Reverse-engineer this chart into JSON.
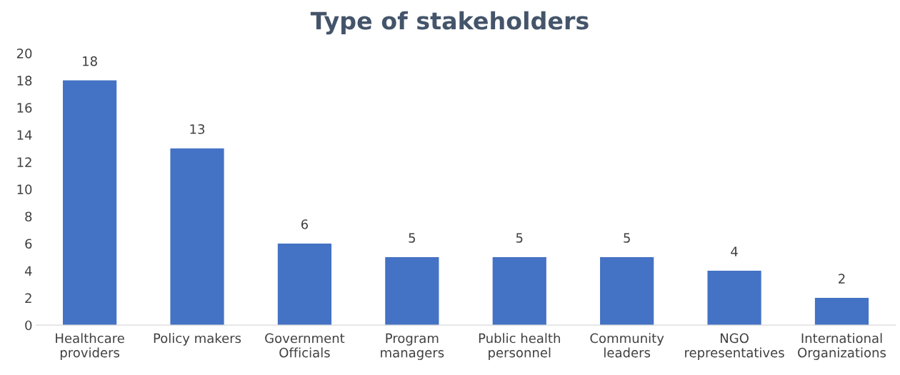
{
  "chart_data": {
    "type": "bar",
    "title": "Type of stakeholders",
    "categories": [
      "Healthcare\nproviders",
      "Policy makers",
      "Government\nOfficials",
      "Program\nmanagers",
      "Public health\npersonnel",
      "Community\nleaders",
      "NGO\nrepresentatives",
      "International\nOrganizations"
    ],
    "values": [
      18,
      13,
      6,
      5,
      5,
      5,
      4,
      2
    ],
    "color": "#4472c4",
    "ylim": [
      0,
      20
    ],
    "yticks": [
      0,
      2,
      4,
      6,
      8,
      10,
      12,
      14,
      16,
      18,
      20
    ],
    "data_labels": true,
    "grid": false,
    "legend": false
  }
}
